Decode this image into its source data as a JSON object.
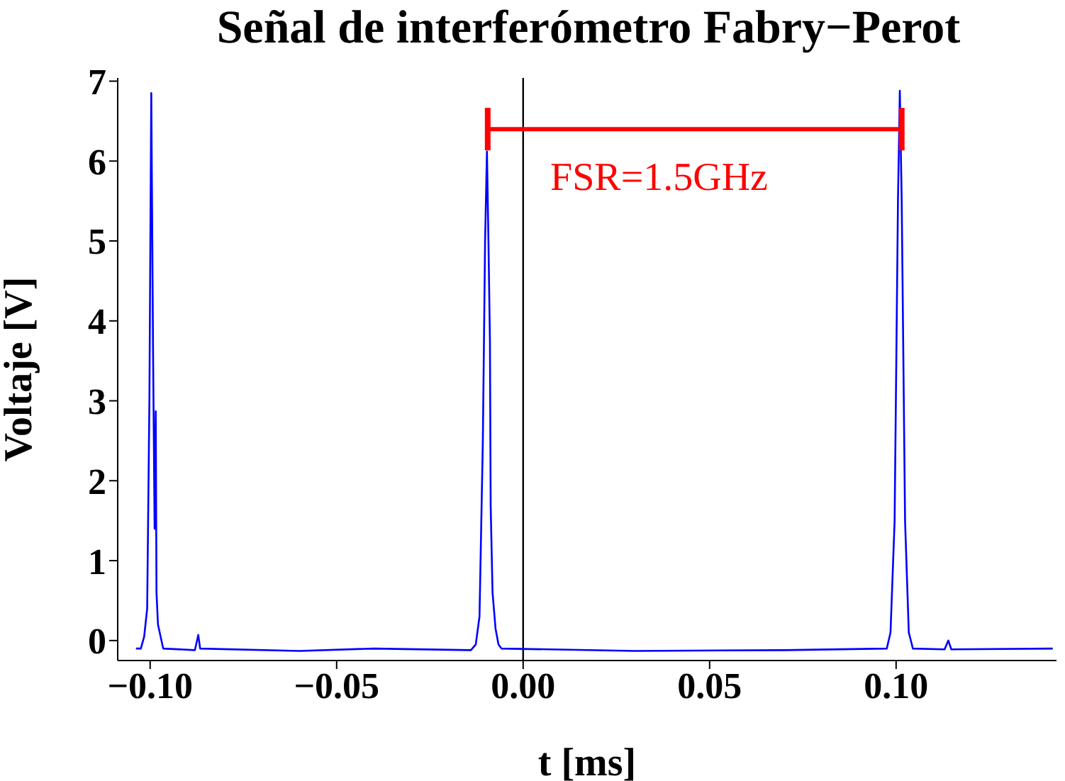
{
  "chart_data": {
    "type": "line",
    "title": "Señal de interferómetro Fabry−Perot",
    "xlabel": "t [ms]",
    "ylabel": "Voltaje [V]",
    "xlim": [
      -0.1087,
      0.143
    ],
    "ylim": [
      -0.25,
      7.04
    ],
    "xticks": [
      {
        "value": -0.1,
        "label": "−0.10"
      },
      {
        "value": -0.05,
        "label": "−0.05"
      },
      {
        "value": 0,
        "label": "0.00"
      },
      {
        "value": 0.05,
        "label": "0.05"
      },
      {
        "value": 0.1,
        "label": "0.10"
      }
    ],
    "yticks": [
      0,
      1,
      2,
      3,
      4,
      5,
      6,
      7
    ],
    "grid": false,
    "ref_lines": [
      {
        "axis": "x",
        "value": 0,
        "color": "#000000"
      }
    ],
    "annotations": [
      "FSR=1.5GHz"
    ],
    "series": [
      {
        "color": "#0000ff",
        "x": [
          -0.1038,
          -0.1025,
          -0.1016,
          -0.1008,
          -0.1002,
          -0.0997,
          -0.0992,
          -0.0988,
          -0.0985,
          -0.0983,
          -0.0979,
          -0.0972,
          -0.0965,
          -0.088,
          -0.0871,
          -0.0866,
          -0.06,
          -0.04,
          -0.014,
          -0.0127,
          -0.0117,
          -0.0108,
          -0.0102,
          -0.0097,
          -0.0093,
          -0.0089,
          -0.0087,
          -0.0082,
          -0.0074,
          -0.0066,
          -0.0058,
          0.03,
          0.07,
          0.0975,
          0.0985,
          0.0996,
          0.1005,
          0.101,
          0.1015,
          0.1024,
          0.1034,
          0.1045,
          0.113,
          0.114,
          0.1148,
          0.142
        ],
        "values": [
          -0.1,
          -0.1,
          0.05,
          0.4,
          3.0,
          6.85,
          3.5,
          1.4,
          2.87,
          0.6,
          0.2,
          0.05,
          -0.1,
          -0.12,
          0.07,
          -0.1,
          -0.13,
          -0.1,
          -0.12,
          -0.05,
          0.3,
          2.5,
          5.0,
          6.12,
          5.0,
          3.76,
          1.68,
          0.6,
          0.15,
          -0.05,
          -0.1,
          -0.13,
          -0.12,
          -0.1,
          0.1,
          1.5,
          5.5,
          6.88,
          5.5,
          1.5,
          0.1,
          -0.1,
          -0.11,
          0.0,
          -0.11,
          -0.1
        ]
      },
      {
        "color": "#ff0000",
        "x": [
          -0.0095,
          0.1015
        ],
        "values": [
          6.4,
          6.4
        ]
      }
    ]
  }
}
